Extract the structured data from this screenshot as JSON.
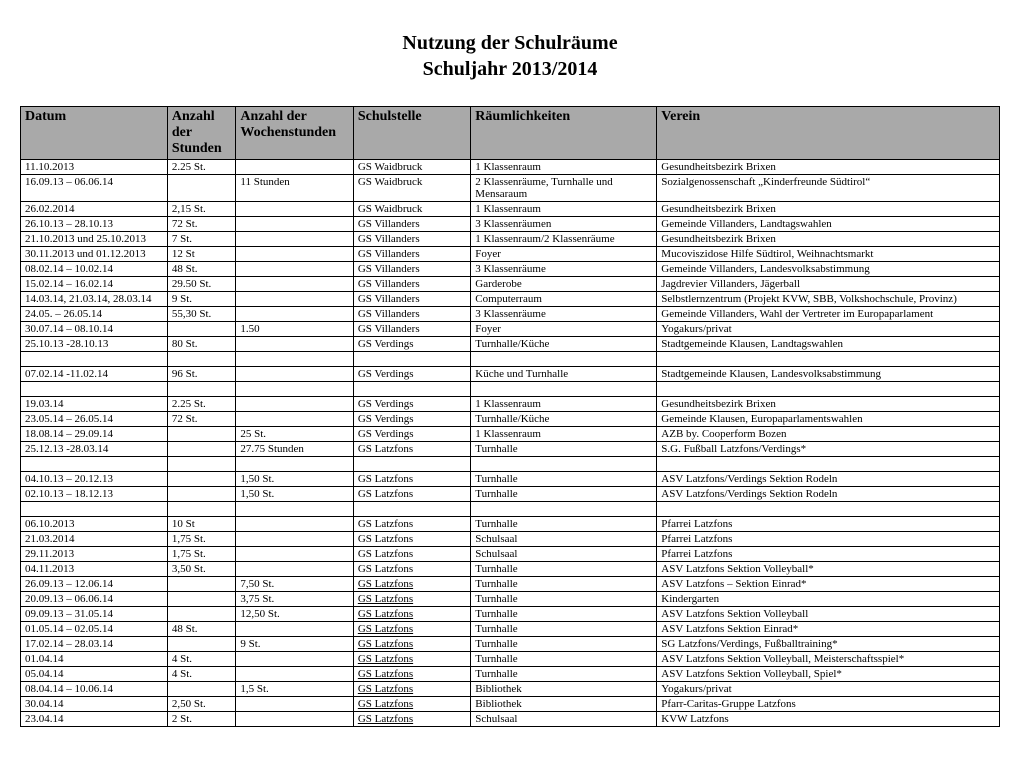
{
  "title_line1": "Nutzung der Schulräume",
  "title_line2": "Schuljahr 2013/2014",
  "columns": [
    "Datum",
    "Anzahl der Stunden",
    "Anzahl der Wochenstunden",
    "Schulstelle",
    "Räumlichkeiten",
    "Verein"
  ],
  "rows": [
    {
      "datum": "11.10.2013",
      "anzst": "2.25 St.",
      "anzws": "",
      "schul": "GS Waidbruck",
      "raum": "1 Klassenraum",
      "verein": "Gesundheitsbezirk Brixen"
    },
    {
      "datum": "16.09.13 – 06.06.14",
      "anzst": "",
      "anzws": "11 Stunden",
      "schul": "GS Waidbruck",
      "raum": "2 Klassenräume, Turnhalle und Mensaraum",
      "verein": "Sozialgenossenschaft „Kinderfreunde Südtirol“"
    },
    {
      "datum": "26.02.2014",
      "anzst": "2,15 St.",
      "anzws": "",
      "schul": "GS Waidbruck",
      "raum": "1 Klassenraum",
      "verein": "Gesundheitsbezirk Brixen"
    },
    {
      "datum": "26.10.13 – 28.10.13",
      "anzst": "72 St.",
      "anzws": "",
      "schul": "GS Villanders",
      "raum": "3 Klassenräumen",
      "verein": "Gemeinde Villanders, Landtagswahlen"
    },
    {
      "datum": "21.10.2013 und 25.10.2013",
      "anzst": "7 St.",
      "anzws": "",
      "schul": "GS Villanders",
      "raum": "1 Klassenraum/2 Klassenräume",
      "verein": "Gesundheitsbezirk Brixen"
    },
    {
      "datum": "30.11.2013 und 01.12.2013",
      "anzst": "12 St",
      "anzws": "",
      "schul": "GS Villanders",
      "raum": "Foyer",
      "verein": "Mucoviszidose Hilfe Südtirol, Weihnachtsmarkt"
    },
    {
      "datum": "08.02.14 – 10.02.14",
      "anzst": "48 St.",
      "anzws": "",
      "schul": "GS Villanders",
      "raum": "3 Klassenräume",
      "verein": "Gemeinde Villanders, Landesvolksabstimmung"
    },
    {
      "datum": "15.02.14 – 16.02.14",
      "anzst": "29.50 St.",
      "anzws": "",
      "schul": "GS Villanders",
      "raum": "Garderobe",
      "verein": "Jagdrevier Villanders, Jägerball"
    },
    {
      "datum": "14.03.14, 21.03.14, 28.03.14",
      "anzst": "9 St.",
      "anzws": "",
      "schul": "GS Villanders",
      "raum": "Computerraum",
      "verein": "Selbstlernzentrum (Projekt KVW, SBB, Volkshochschule, Provinz)"
    },
    {
      "datum": "24.05. – 26.05.14",
      "anzst": "55,30 St.",
      "anzws": "",
      "schul": "GS Villanders",
      "raum": "3 Klassenräume",
      "verein": "Gemeinde Villanders, Wahl der Vertreter im Europaparlament"
    },
    {
      "datum": "30.07.14 – 08.10.14",
      "anzst": "",
      "anzws": "1.50",
      "schul": "GS Villanders",
      "raum": "Foyer",
      "verein": "Yogakurs/privat"
    },
    {
      "datum": "25.10.13 -28.10.13",
      "anzst": "80 St.",
      "anzws": "",
      "schul": "GS Verdings",
      "raum": "Turnhalle/Küche",
      "verein": "Stadtgemeinde Klausen, Landtagswahlen"
    },
    {
      "empty": true
    },
    {
      "datum": "07.02.14 -11.02.14",
      "anzst": "96 St.",
      "anzws": "",
      "schul": "GS Verdings",
      "raum": "Küche und Turnhalle",
      "verein": "Stadtgemeinde Klausen, Landesvolksabstimmung"
    },
    {
      "empty": true
    },
    {
      "datum": "19.03.14",
      "anzst": "2.25 St.",
      "anzws": "",
      "schul": "GS Verdings",
      "raum": "1 Klassenraum",
      "verein": "Gesundheitsbezirk Brixen"
    },
    {
      "datum": "23.05.14 – 26.05.14",
      "anzst": "72 St.",
      "anzws": "",
      "schul": "GS Verdings",
      "raum": "Turnhalle/Küche",
      "verein": "Gemeinde Klausen, Europaparlamentswahlen"
    },
    {
      "datum": "18.08.14 – 29.09.14",
      "anzst": "",
      "anzws": "25 St.",
      "schul": "GS Verdings",
      "raum": "1 Klassenraum",
      "verein": "AZB by. Cooperform Bozen"
    },
    {
      "datum": "25.12.13 -28.03.14",
      "anzst": "",
      "anzws": "27.75 Stunden",
      "schul": "GS Latzfons",
      "raum": "Turnhalle",
      "verein": "S.G. Fußball Latzfons/Verdings*"
    },
    {
      "empty": true
    },
    {
      "datum": "04.10.13 – 20.12.13",
      "anzst": "",
      "anzws": "1,50 St.",
      "schul": "GS Latzfons",
      "raum": "Turnhalle",
      "verein": "ASV Latzfons/Verdings Sektion Rodeln"
    },
    {
      "datum": "02.10.13 – 18.12.13",
      "anzst": "",
      "anzws": "1,50 St.",
      "schul": "GS Latzfons",
      "raum": "Turnhalle",
      "verein": "ASV Latzfons/Verdings Sektion Rodeln"
    },
    {
      "empty": true
    },
    {
      "datum": "06.10.2013",
      "anzst": "10 St",
      "anzws": "",
      "schul": "GS Latzfons",
      "raum": "Turnhalle",
      "verein": "Pfarrei Latzfons"
    },
    {
      "datum": "21.03.2014",
      "anzst": "1,75 St.",
      "anzws": "",
      "schul": "GS Latzfons",
      "raum": "Schulsaal",
      "verein": "Pfarrei Latzfons"
    },
    {
      "datum": "29.11.2013",
      "anzst": "1,75 St.",
      "anzws": "",
      "schul": "GS Latzfons",
      "raum": "Schulsaal",
      "verein": "Pfarrei Latzfons"
    },
    {
      "datum": "04.11.2013",
      "anzst": "3,50 St.",
      "anzws": "",
      "schul": "GS Latzfons",
      "raum": "Turnhalle",
      "verein": "ASV Latzfons Sektion Volleyball*"
    },
    {
      "datum": "26.09.13 – 12.06.14",
      "anzst": "",
      "anzws": "7,50 St.",
      "schul": "GS Latzfons",
      "schul_u": true,
      "raum": "Turnhalle",
      "verein": "ASV Latzfons – Sektion Einrad*"
    },
    {
      "datum": "20.09.13 – 06.06.14",
      "anzst": "",
      "anzws": "3,75 St.",
      "schul": "GS Latzfons",
      "schul_u": true,
      "raum": "Turnhalle",
      "verein": "Kindergarten"
    },
    {
      "datum": "09.09.13 – 31.05.14",
      "anzst": "",
      "anzws": "12,50 St.",
      "schul": "GS Latzfons",
      "schul_u": true,
      "raum": "Turnhalle",
      "verein": "ASV Latzfons  Sektion Volleyball"
    },
    {
      "datum": "01.05.14 – 02.05.14",
      "anzst": "48 St.",
      "anzws": "",
      "schul": "GS Latzfons",
      "schul_u": true,
      "raum": "Turnhalle",
      "verein": "ASV Latzfons Sektion Einrad*"
    },
    {
      "datum": "17.02.14 – 28.03.14",
      "anzst": "",
      "anzws": "9 St.",
      "schul": "GS Latzfons",
      "schul_u": true,
      "raum": "Turnhalle",
      "verein": "SG Latzfons/Verdings, Fußballtraining*"
    },
    {
      "datum": "01.04.14",
      "anzst": "4 St.",
      "anzws": "",
      "schul": "GS Latzfons",
      "schul_u": true,
      "raum": "Turnhalle",
      "verein": "ASV Latzfons Sektion Volleyball, Meisterschaftsspiel*"
    },
    {
      "datum": "05.04.14",
      "anzst": "4 St.",
      "anzws": "",
      "schul": "GS Latzfons",
      "schul_u": true,
      "raum": "Turnhalle",
      "verein": "ASV Latzfons Sektion Volleyball, Spiel*"
    },
    {
      "datum": "08.04.14 – 10.06.14",
      "anzst": "",
      "anzws": "1,5 St.",
      "schul": "GS Latzfons",
      "schul_u": true,
      "raum": "Bibliothek",
      "verein": "Yogakurs/privat"
    },
    {
      "datum": "30.04.14",
      "anzst": "2,50 St.",
      "anzws": "",
      "schul": "GS Latzfons",
      "schul_u": true,
      "raum": "Bibliothek",
      "verein": "Pfarr-Caritas-Gruppe Latzfons"
    },
    {
      "datum": "23.04.14",
      "anzst": "2 St.",
      "anzws": "",
      "schul": "GS Latzfons",
      "schul_u": true,
      "raum": "Schulsaal",
      "verein": "KVW Latzfons"
    }
  ]
}
